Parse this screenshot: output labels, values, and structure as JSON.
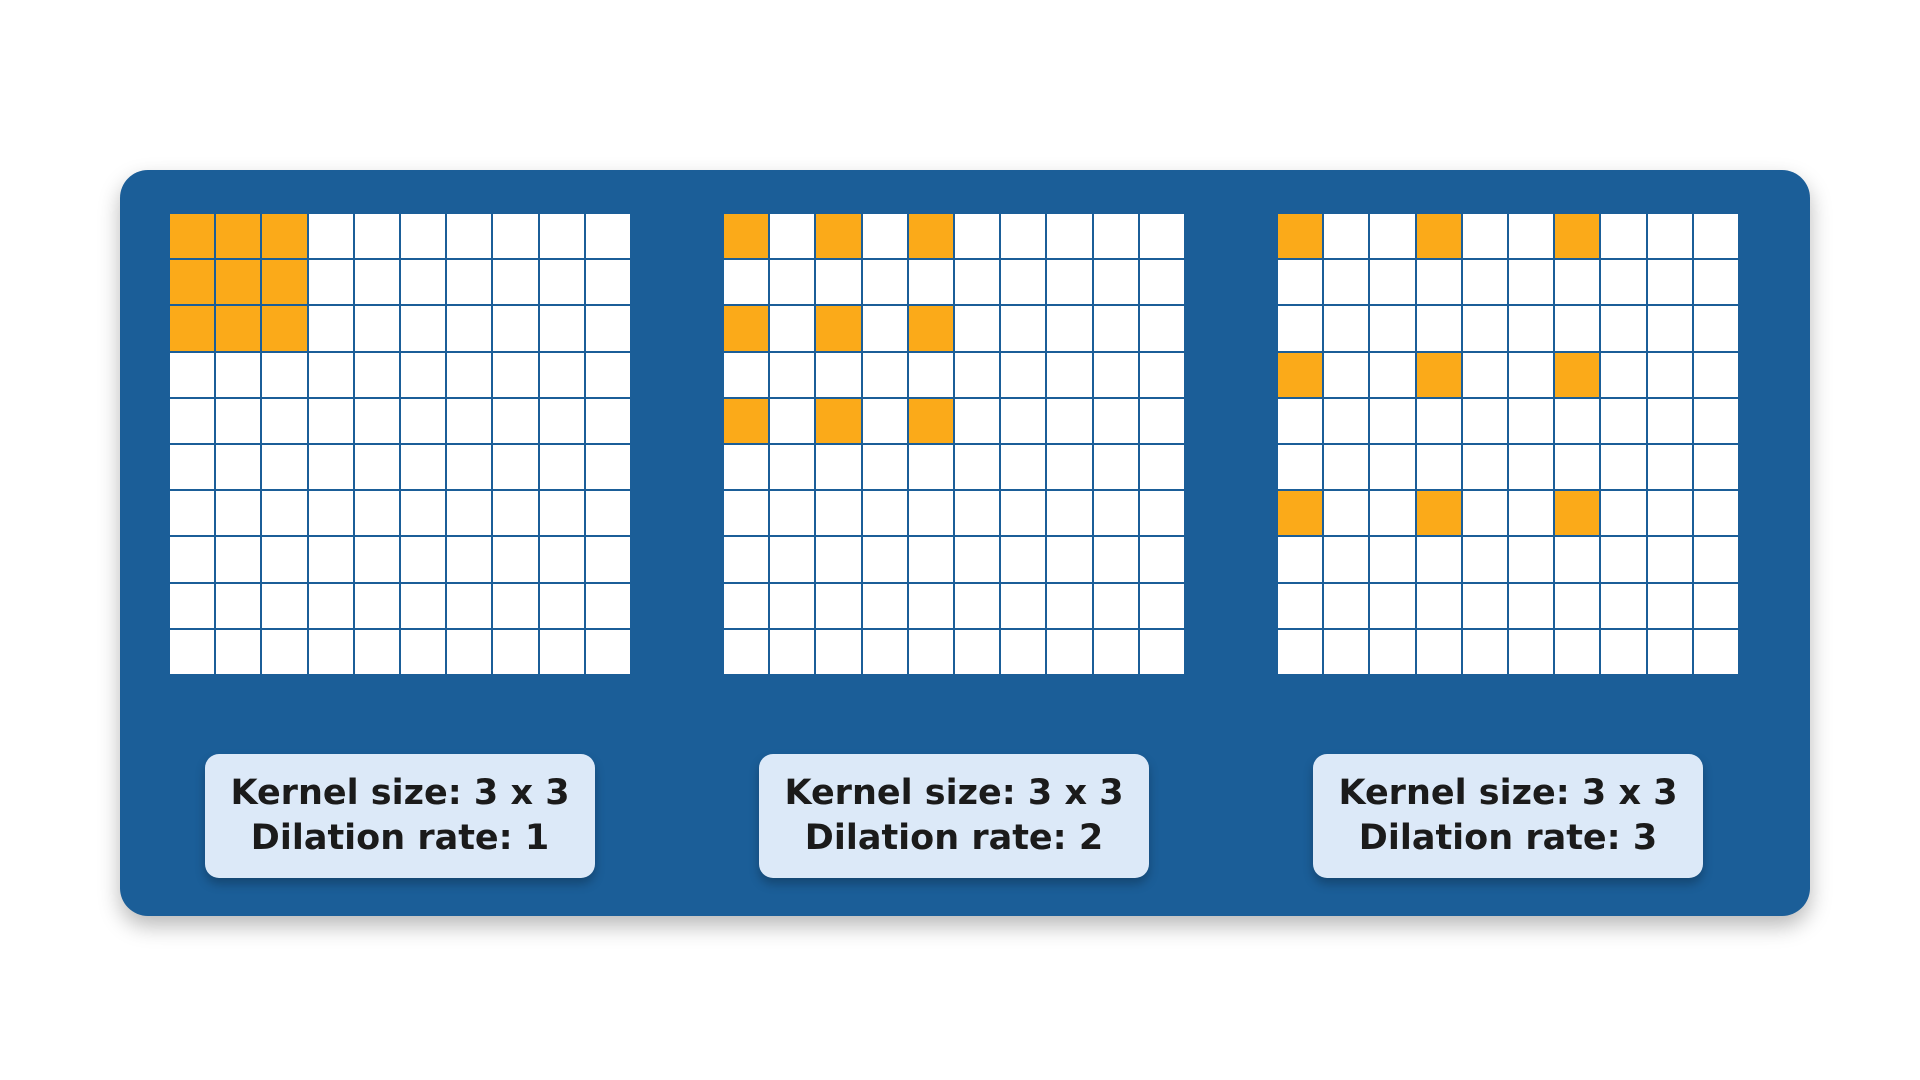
{
  "colors": {
    "panel": "#1b5e98",
    "grid_line": "#1b5e98",
    "cell_empty": "#ffffff",
    "cell_kernel": "#fbaa19",
    "label_bg": "#dce9f8"
  },
  "grid_size": 10,
  "examples": [
    {
      "kernel_text": "Kernel size: 3 x 3",
      "dilation_text": "Dilation rate: 1",
      "dilation": 1
    },
    {
      "kernel_text": "Kernel size: 3 x 3",
      "dilation_text": "Dilation rate: 2",
      "dilation": 2
    },
    {
      "kernel_text": "Kernel size: 3 x 3",
      "dilation_text": "Dilation rate: 3",
      "dilation": 3
    }
  ]
}
